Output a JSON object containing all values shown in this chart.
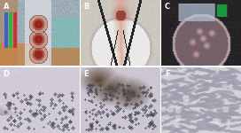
{
  "figsize": [
    2.72,
    1.5
  ],
  "dpi": 100,
  "nrows": 2,
  "ncols": 3,
  "labels": [
    "A",
    "B",
    "C",
    "D",
    "E",
    "F"
  ],
  "label_color": "white",
  "label_fontsize": 6,
  "label_fontweight": "bold",
  "border_color": "white",
  "border_linewidth": 0.8,
  "panel_A_bg": "#a0b0c0",
  "panel_B_bg": "#c8c4be",
  "panel_C_bg": "#282828",
  "panel_D_bg": "#c8c4cc",
  "panel_E_bg": "#c4c0c8",
  "panel_F_bg": "#cccad4"
}
